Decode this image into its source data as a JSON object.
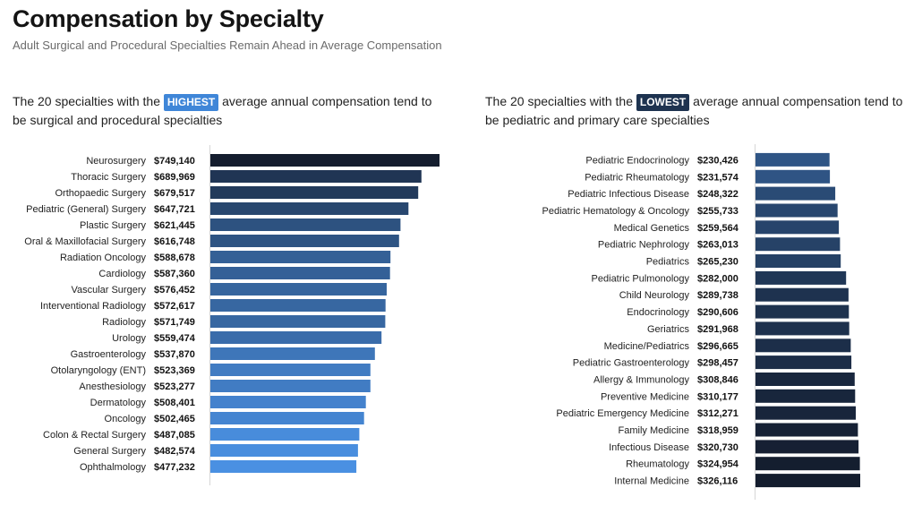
{
  "header": {
    "title": "Compensation by Specialty",
    "subtitle": "Adult Surgical and Procedural Specialties Remain Ahead in Average Compensation"
  },
  "panels": {
    "left": {
      "text_before": "The 20 specialties with the ",
      "badge": "HIGHEST",
      "text_after": " average annual compensation tend to be surgical and procedural specialties"
    },
    "right": {
      "text_before": "The 20 specialties with the ",
      "badge": "LOWEST",
      "text_after": " average annual compensation tend to be pediatric and primary care specialties"
    }
  },
  "colors": {
    "dark_navy": "#141d2e",
    "mid_blue": "#2f5585",
    "light_blue": "#4a90e2",
    "badge_highest": "#3f86d8",
    "badge_lowest": "#1e3350"
  },
  "chart_data": [
    {
      "type": "bar",
      "orientation": "horizontal",
      "title": "",
      "categories": [
        "Neurosurgery",
        "Thoracic Surgery",
        "Orthopaedic Surgery",
        "Pediatric (General) Surgery",
        "Plastic Surgery",
        "Oral & Maxillofacial Surgery",
        "Radiation Oncology",
        "Cardiology",
        "Vascular Surgery",
        "Interventional Radiology",
        "Radiology",
        "Urology",
        "Gastroenterology",
        "Otolaryngology (ENT)",
        "Anesthesiology",
        "Dermatology",
        "Oncology",
        "Colon & Rectal Surgery",
        "General Surgery",
        "Ophthalmology"
      ],
      "values": [
        749140,
        689969,
        679517,
        647721,
        621445,
        616748,
        588678,
        587360,
        576452,
        572617,
        571749,
        559474,
        537870,
        523369,
        523277,
        508401,
        502465,
        487085,
        482574,
        477232
      ],
      "value_labels": [
        "$749,140",
        "$689,969",
        "$679,517",
        "$647,721",
        "$621,445",
        "$616,748",
        "$588,678",
        "$587,360",
        "$576,452",
        "$572,617",
        "$571,749",
        "$559,474",
        "$537,870",
        "$523,369",
        "$523,277",
        "$508,401",
        "$502,465",
        "$487,085",
        "$482,574",
        "$477,232"
      ],
      "color_scale": "dark navy (highest) to light blue (lowest)",
      "grid": false
    },
    {
      "type": "bar",
      "orientation": "horizontal",
      "title": "",
      "categories": [
        "Pediatric Endocrinology",
        "Pediatric Rheumatology",
        "Pediatric Infectious Disease",
        "Pediatric Hematology & Oncology",
        "Medical Genetics",
        "Pediatric Nephrology",
        "Pediatrics",
        "Pediatric Pulmonology",
        "Child Neurology",
        "Endocrinology",
        "Geriatrics",
        "Medicine/Pediatrics",
        "Pediatric Gastroenterology",
        "Allergy & Immunology",
        "Preventive Medicine",
        "Pediatric Emergency Medicine",
        "Family Medicine",
        "Infectious Disease",
        "Rheumatology",
        "Internal Medicine"
      ],
      "values": [
        230426,
        231574,
        248322,
        255733,
        259564,
        263013,
        265230,
        282000,
        289738,
        290606,
        291968,
        296665,
        298457,
        308846,
        310177,
        312271,
        318959,
        320730,
        324954,
        326116
      ],
      "value_labels": [
        "$230,426",
        "$231,574",
        "$248,322",
        "$255,733",
        "$259,564",
        "$263,013",
        "$265,230",
        "$282,000",
        "$289,738",
        "$290,606",
        "$291,968",
        "$296,665",
        "$298,457",
        "$308,846",
        "$310,177",
        "$312,271",
        "$318,959",
        "$320,730",
        "$324,954",
        "$326,116"
      ],
      "color_scale": "mid blue (lowest) to dark navy (highest)",
      "grid": false
    }
  ]
}
